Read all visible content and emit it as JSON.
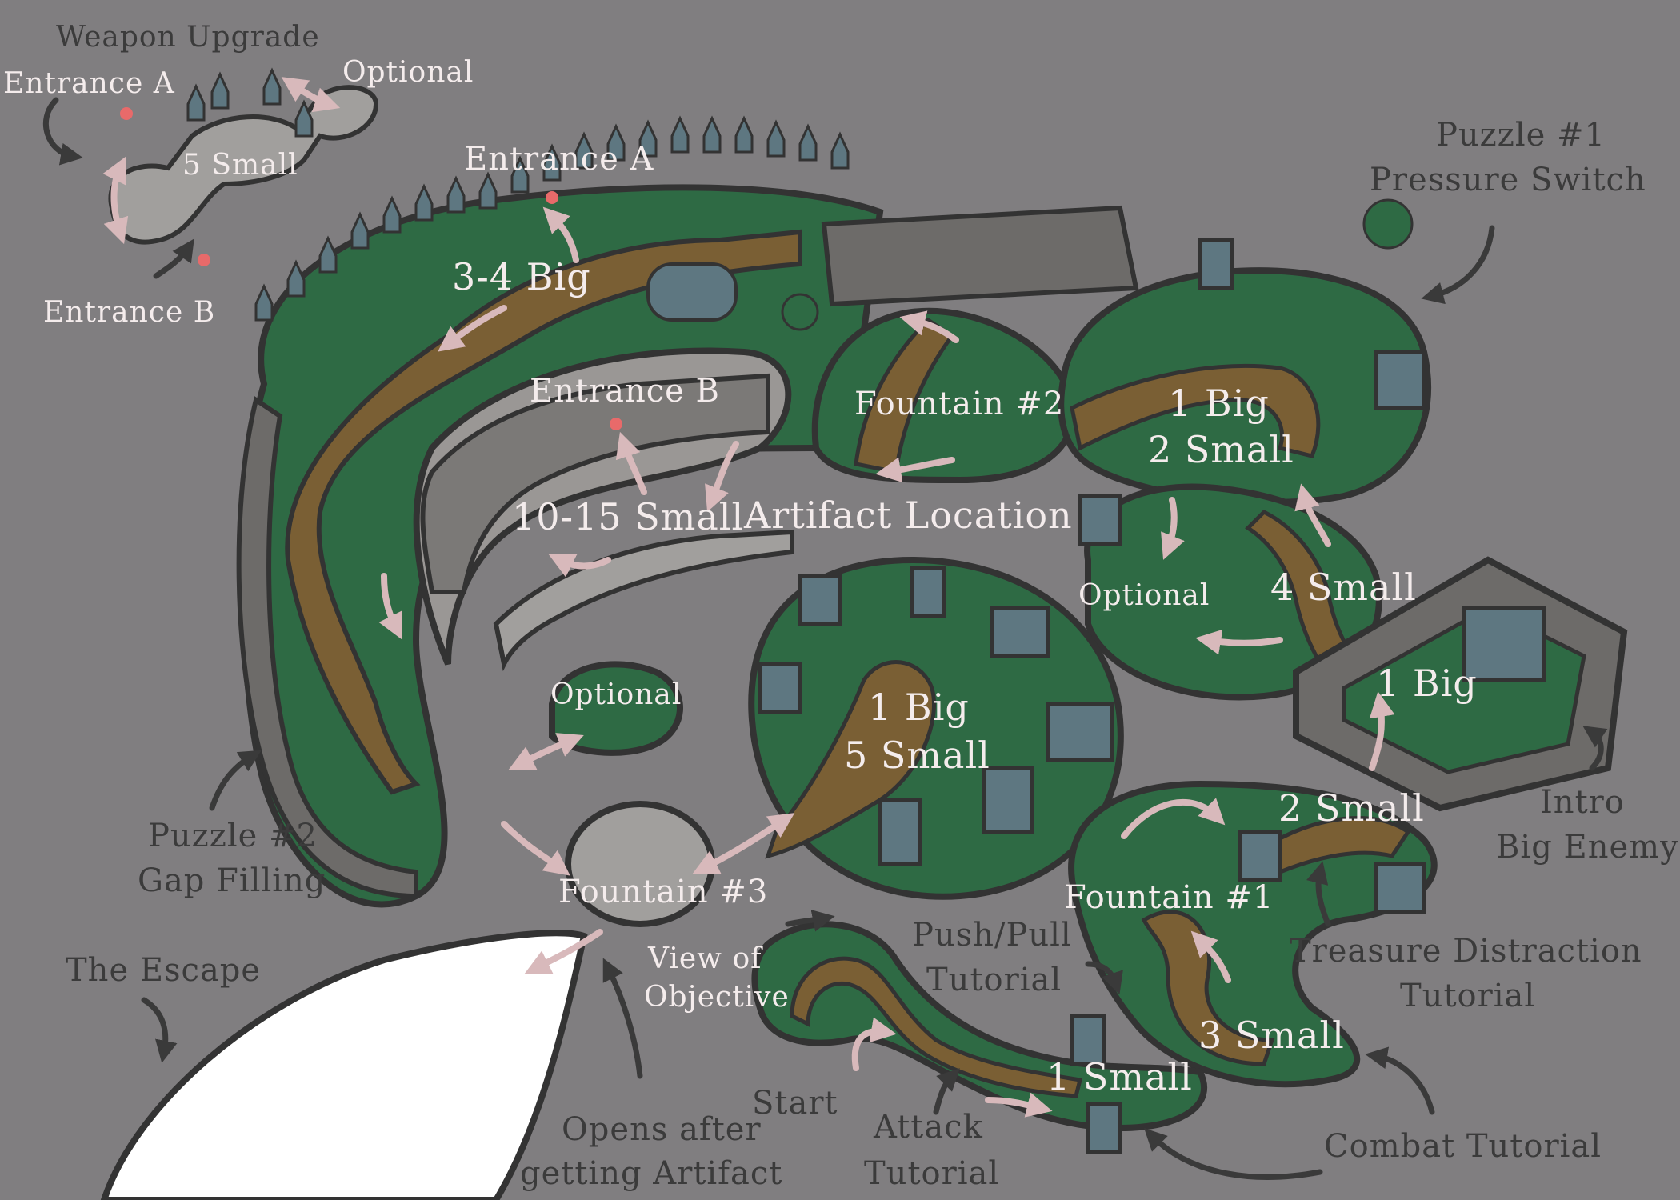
{
  "map": {
    "colors": {
      "background": "#807e80",
      "grass": "#2e6a44",
      "path": "#7a5f34",
      "stone": "#9a9795",
      "wall": "#6d6b69",
      "outline": "#333333",
      "building": "#5e7781",
      "arrow_in": "#d8b9bb",
      "arrow_out": "#3a3a3a",
      "label_in": "#f4ecec",
      "label_out": "#3b3b3b",
      "entrance_marker": "#e86a6a",
      "escape_area": "#ffffff"
    },
    "labels": {
      "weapon_upgrade": "Weapon Upgrade",
      "entrance_a_small": "Entrance A",
      "optional_top": "Optional",
      "five_small": "5 Small",
      "entrance_b_small": "Entrance B",
      "entrance_a_main": "Entrance A",
      "three_four_big": "3-4 Big",
      "entrance_b_main": "Entrance B",
      "ten_fifteen_small": "10-15 Small",
      "artifact_location": "Artifact Location",
      "fountain_2": "Fountain #2",
      "one_big_two_small": [
        "1 Big",
        "2 Small"
      ],
      "puzzle_1": [
        "Puzzle #1",
        "Pressure Switch"
      ],
      "optional_mid": "Optional",
      "four_small": "4 Small",
      "one_big_right": "1 Big",
      "optional_left": "Optional",
      "one_big_five_small": [
        "1 Big",
        "5 Small"
      ],
      "intro_big_enemy": [
        "Intro",
        "Big Enemy"
      ],
      "two_small": "2 Small",
      "puzzle_2": [
        "Puzzle #2",
        "Gap Filling"
      ],
      "fountain_3": "Fountain #3",
      "fountain_1": "Fountain #1",
      "push_pull_tutorial": [
        "Push/Pull",
        "Tutorial"
      ],
      "treasure_distraction_tutorial": [
        "Treasure Distraction",
        "Tutorial"
      ],
      "the_escape": "The Escape",
      "view_of_objective": [
        "View of",
        "Objective"
      ],
      "three_small": "3 Small",
      "start": "Start",
      "one_small": "1 Small",
      "attack_tutorial": [
        "Attack",
        "Tutorial"
      ],
      "opens_after_artifact": [
        "Opens after",
        "getting Artifact"
      ],
      "combat_tutorial": "Combat Tutorial"
    }
  }
}
